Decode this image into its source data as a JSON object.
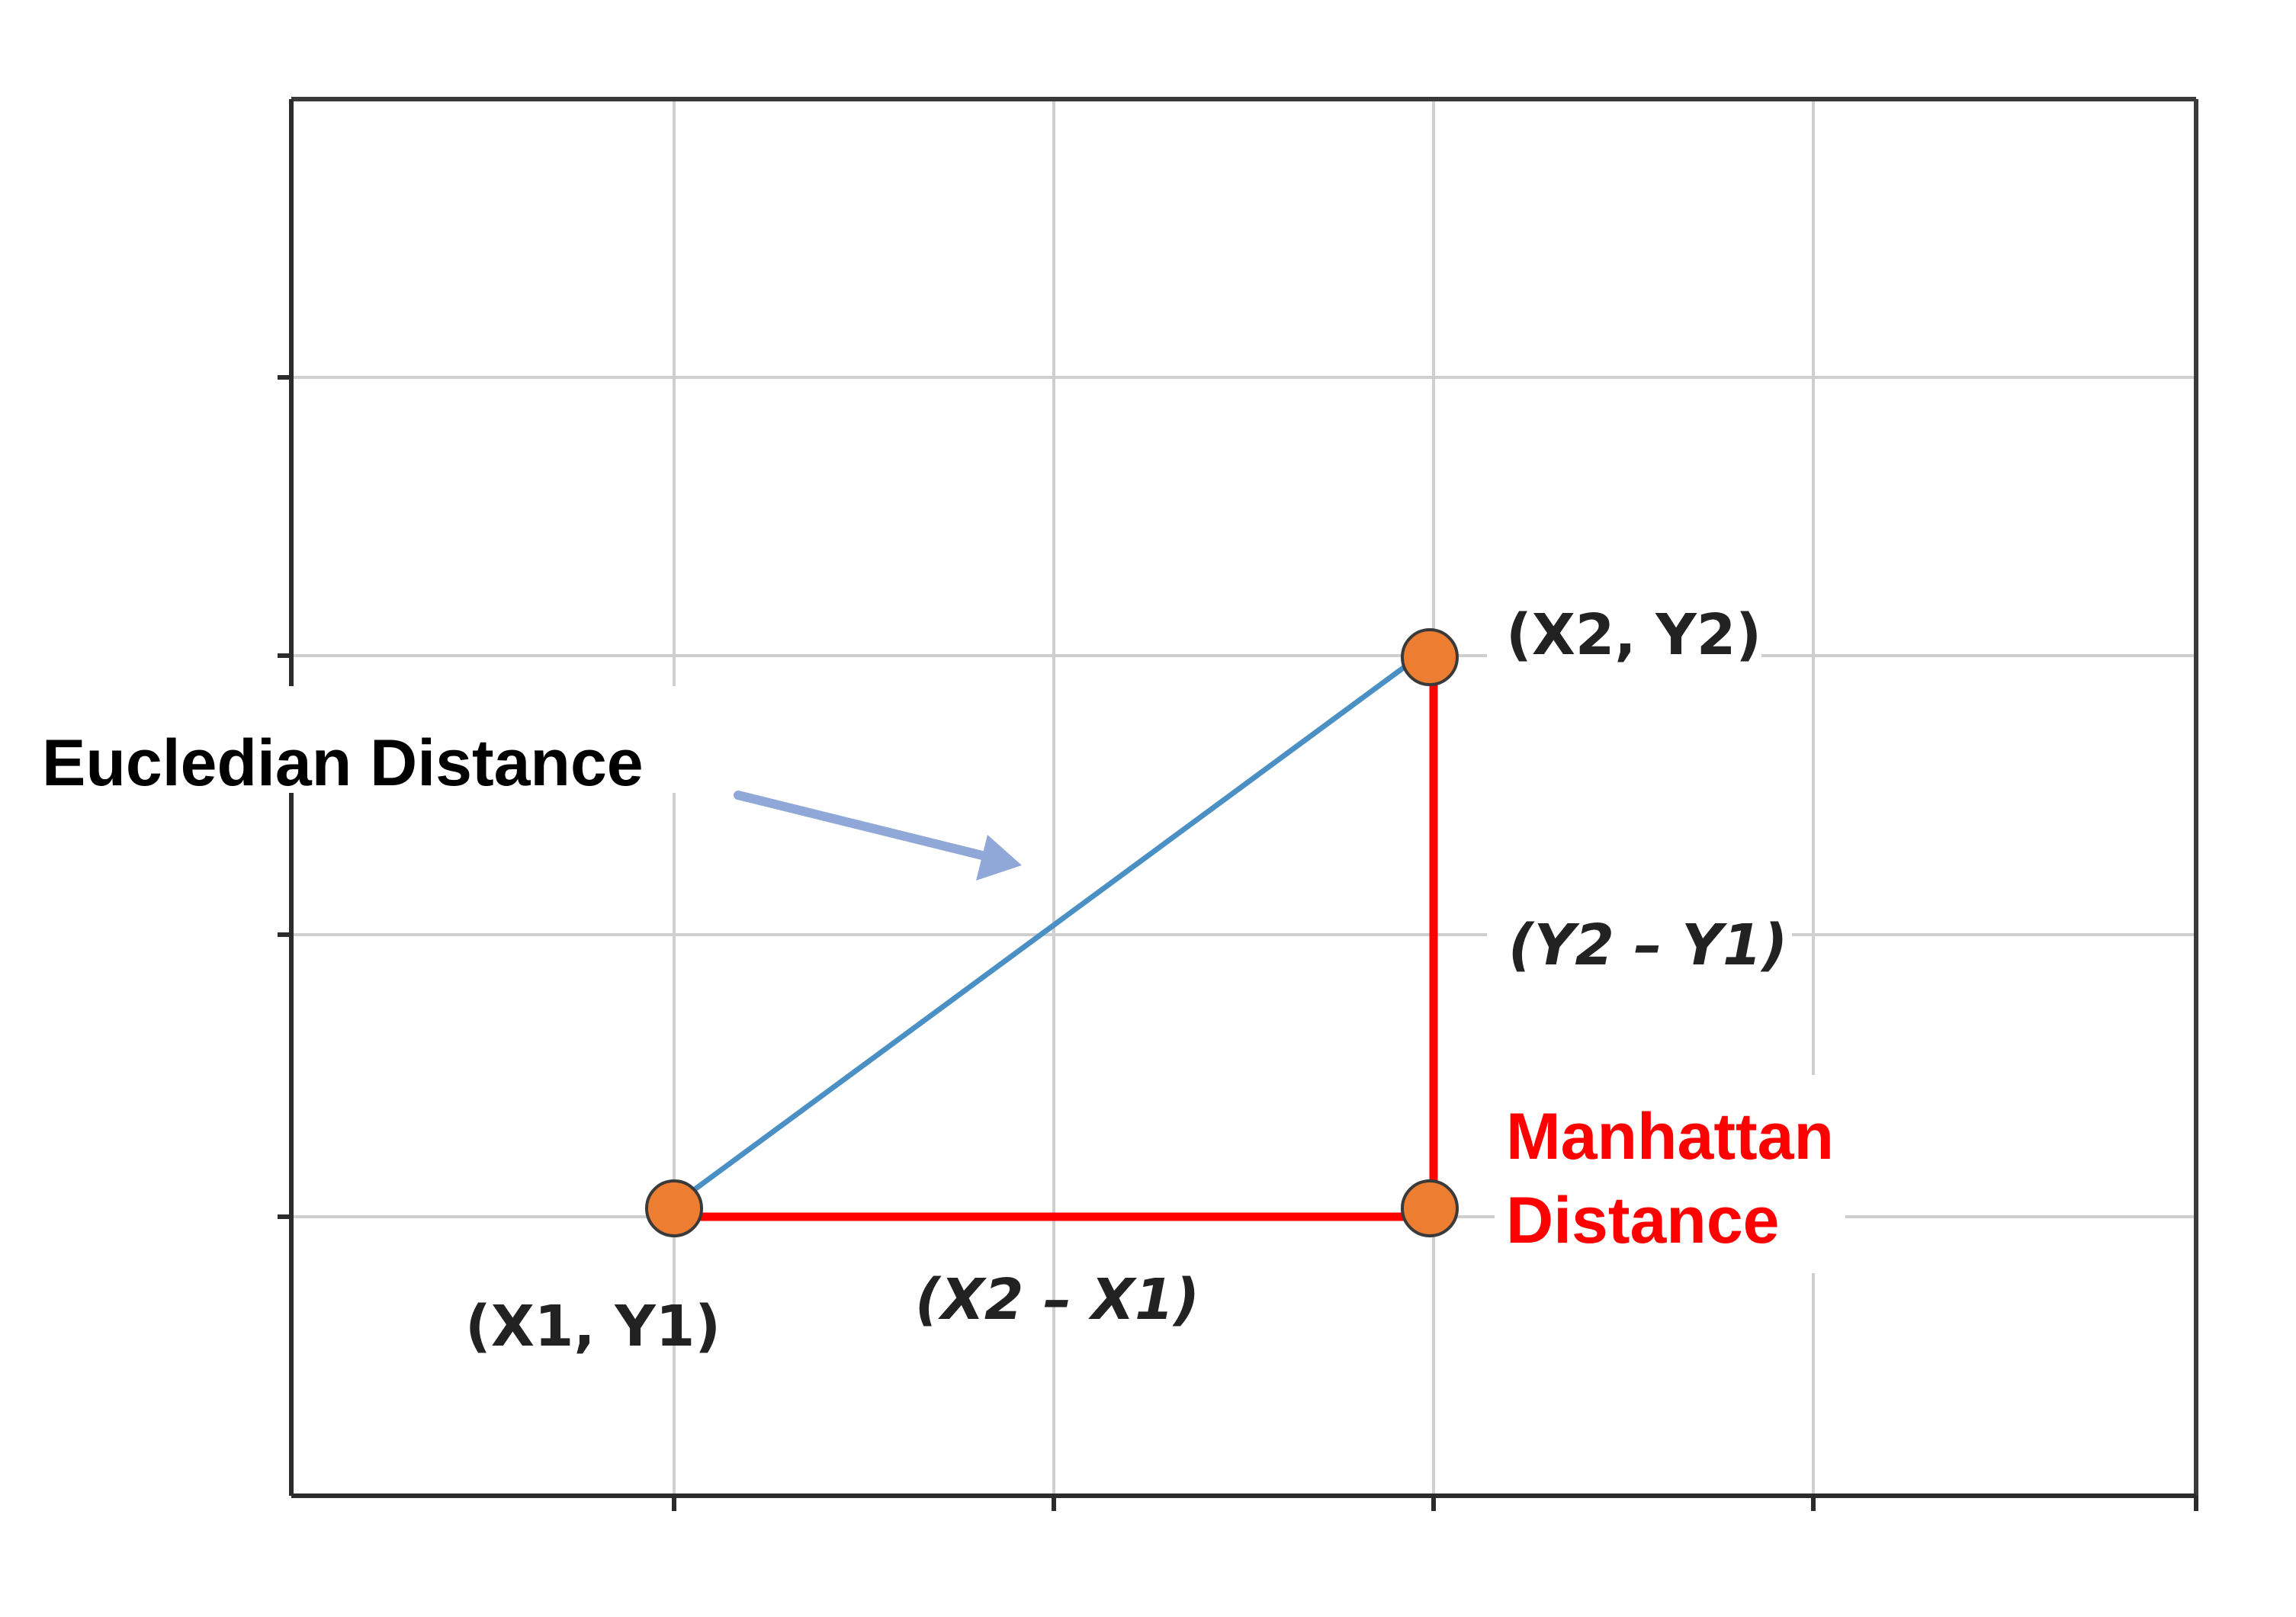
{
  "colors": {
    "grid": "#cfcfcf",
    "axis": "#2b2b2b",
    "euclidean_line": "#4a90c4",
    "euclidean_arrow": "#8fa8d8",
    "manhattan_line": "#ff0000",
    "manhattan_label": "#ff0000",
    "point_fill": "#ed7d31",
    "point_stroke": "#3a3a3a",
    "text": "#000000"
  },
  "labels": {
    "euclidean": "Eucledian Distance",
    "manhattan_line1": "Manhattan",
    "manhattan_line2": "Distance",
    "point1": "(X1, Y1)",
    "point2": "(X2, Y2)",
    "dx": "(X2 – X1)",
    "dy": "(Y2 – Y1)"
  },
  "points": [
    {
      "name": "point1",
      "x": 1,
      "y": 1
    },
    {
      "name": "point2",
      "x": 3,
      "y": 3
    },
    {
      "name": "corner",
      "x": 3,
      "y": 1
    }
  ],
  "grid": {
    "columns": 5,
    "rows": 5
  }
}
